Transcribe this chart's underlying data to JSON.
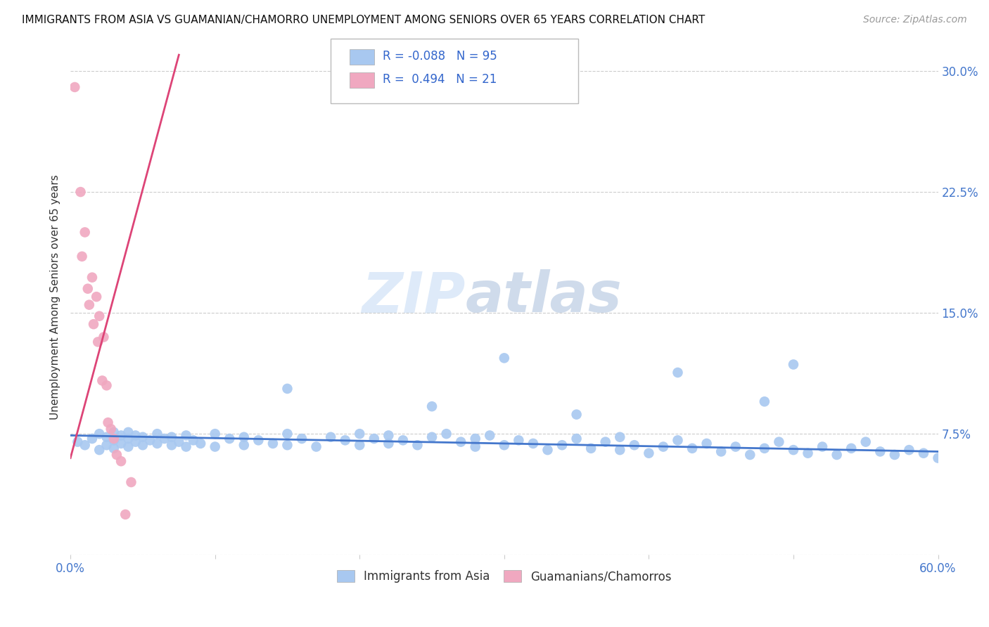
{
  "title": "IMMIGRANTS FROM ASIA VS GUAMANIAN/CHAMORRO UNEMPLOYMENT AMONG SENIORS OVER 65 YEARS CORRELATION CHART",
  "source": "Source: ZipAtlas.com",
  "ylabel": "Unemployment Among Seniors over 65 years",
  "xlim": [
    0.0,
    0.6
  ],
  "ylim": [
    0.0,
    0.32
  ],
  "xticks": [
    0.0,
    0.1,
    0.2,
    0.3,
    0.4,
    0.5,
    0.6
  ],
  "xticklabels": [
    "0.0%",
    "",
    "",
    "",
    "",
    "",
    "60.0%"
  ],
  "yticks": [
    0.0,
    0.075,
    0.15,
    0.225,
    0.3
  ],
  "yticklabels": [
    "",
    "7.5%",
    "15.0%",
    "22.5%",
    "30.0%"
  ],
  "blue_R": -0.088,
  "blue_N": 95,
  "pink_R": 0.494,
  "pink_N": 21,
  "blue_color": "#a8c8f0",
  "pink_color": "#f0a8c0",
  "blue_line_color": "#4477cc",
  "pink_line_color": "#dd4477",
  "grid_color": "#cccccc",
  "watermark_zip": "ZIP",
  "watermark_atlas": "atlas",
  "blue_scatter_x": [
    0.005,
    0.01,
    0.015,
    0.02,
    0.02,
    0.025,
    0.025,
    0.03,
    0.03,
    0.03,
    0.035,
    0.035,
    0.04,
    0.04,
    0.04,
    0.045,
    0.045,
    0.05,
    0.05,
    0.055,
    0.06,
    0.06,
    0.065,
    0.07,
    0.07,
    0.075,
    0.08,
    0.08,
    0.085,
    0.09,
    0.1,
    0.1,
    0.11,
    0.12,
    0.12,
    0.13,
    0.14,
    0.15,
    0.15,
    0.16,
    0.17,
    0.18,
    0.19,
    0.2,
    0.2,
    0.21,
    0.22,
    0.22,
    0.23,
    0.24,
    0.25,
    0.26,
    0.27,
    0.28,
    0.28,
    0.29,
    0.3,
    0.31,
    0.32,
    0.33,
    0.34,
    0.35,
    0.36,
    0.37,
    0.38,
    0.38,
    0.39,
    0.4,
    0.41,
    0.42,
    0.43,
    0.44,
    0.45,
    0.46,
    0.47,
    0.48,
    0.49,
    0.5,
    0.51,
    0.52,
    0.53,
    0.54,
    0.55,
    0.56,
    0.57,
    0.58,
    0.59,
    0.6,
    0.42,
    0.5,
    0.35,
    0.48,
    0.25,
    0.3,
    0.15
  ],
  "blue_scatter_y": [
    0.07,
    0.068,
    0.072,
    0.065,
    0.075,
    0.068,
    0.073,
    0.066,
    0.071,
    0.076,
    0.069,
    0.074,
    0.072,
    0.067,
    0.076,
    0.07,
    0.074,
    0.068,
    0.073,
    0.071,
    0.069,
    0.075,
    0.072,
    0.068,
    0.073,
    0.07,
    0.067,
    0.074,
    0.071,
    0.069,
    0.075,
    0.067,
    0.072,
    0.068,
    0.073,
    0.071,
    0.069,
    0.075,
    0.068,
    0.072,
    0.067,
    0.073,
    0.071,
    0.075,
    0.068,
    0.072,
    0.069,
    0.074,
    0.071,
    0.068,
    0.073,
    0.075,
    0.07,
    0.067,
    0.072,
    0.074,
    0.068,
    0.071,
    0.069,
    0.065,
    0.068,
    0.072,
    0.066,
    0.07,
    0.065,
    0.073,
    0.068,
    0.063,
    0.067,
    0.071,
    0.066,
    0.069,
    0.064,
    0.067,
    0.062,
    0.066,
    0.07,
    0.065,
    0.063,
    0.067,
    0.062,
    0.066,
    0.07,
    0.064,
    0.062,
    0.065,
    0.063,
    0.06,
    0.113,
    0.118,
    0.087,
    0.095,
    0.092,
    0.122,
    0.103
  ],
  "pink_scatter_x": [
    0.003,
    0.007,
    0.008,
    0.01,
    0.012,
    0.013,
    0.015,
    0.016,
    0.018,
    0.019,
    0.02,
    0.022,
    0.023,
    0.025,
    0.026,
    0.028,
    0.03,
    0.032,
    0.035,
    0.038,
    0.042
  ],
  "pink_scatter_y": [
    0.29,
    0.225,
    0.185,
    0.2,
    0.165,
    0.155,
    0.172,
    0.143,
    0.16,
    0.132,
    0.148,
    0.108,
    0.135,
    0.105,
    0.082,
    0.078,
    0.072,
    0.062,
    0.058,
    0.025,
    0.045
  ],
  "pink_line_x0": 0.0,
  "pink_line_y0": 0.06,
  "pink_line_x1": 0.075,
  "pink_line_y1": 0.31,
  "blue_line_x0": 0.0,
  "blue_line_y0": 0.074,
  "blue_line_x1": 0.6,
  "blue_line_y1": 0.064
}
